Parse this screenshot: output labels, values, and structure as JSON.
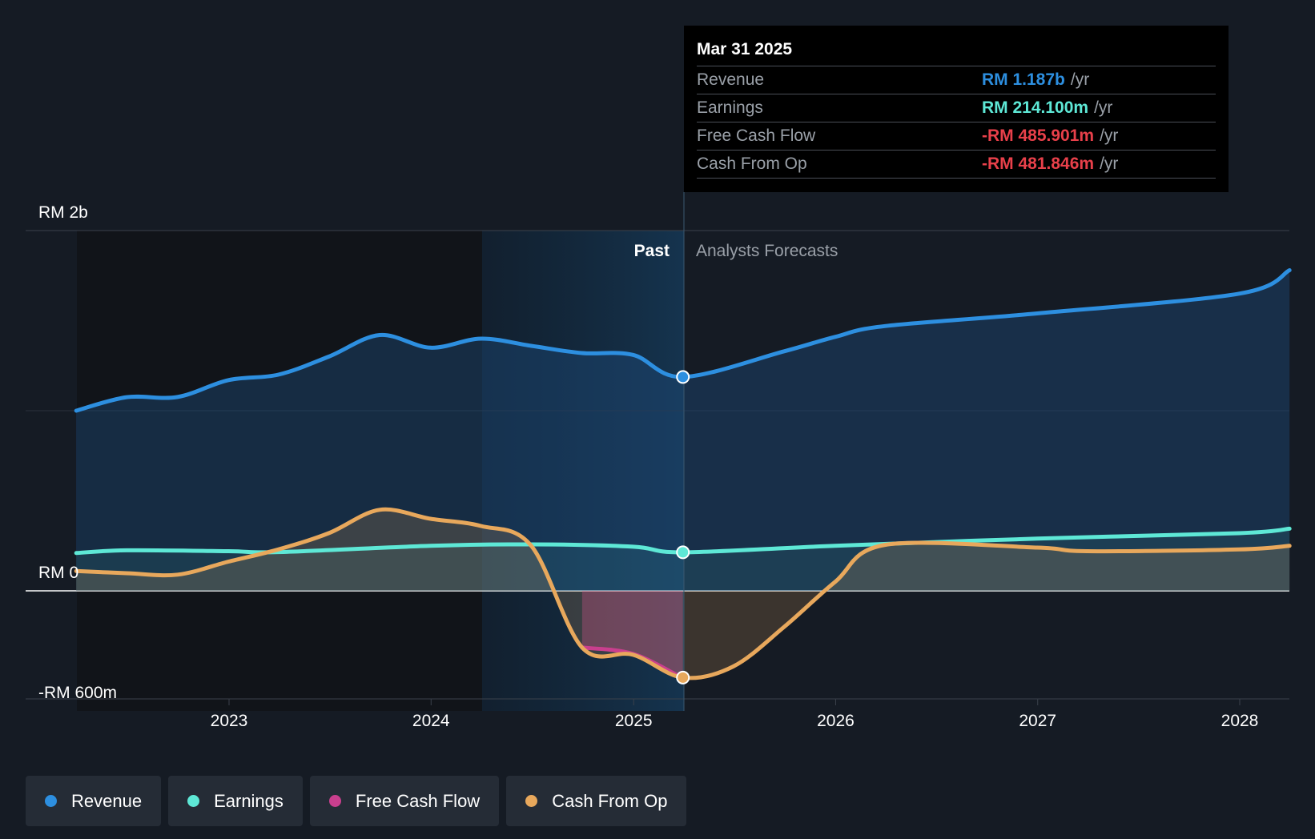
{
  "chart_data": {
    "type": "area",
    "currency": "RM",
    "y_axis": {
      "min": -600,
      "max": 2000,
      "unit": "RM m",
      "labels": [
        "RM 2b",
        "RM 0",
        "-RM 600m"
      ]
    },
    "x_axis": {
      "ticks": [
        "2023",
        "2024",
        "2025",
        "2026",
        "2027",
        "2028"
      ]
    },
    "sections": {
      "past_label": "Past",
      "forecast_label": "Analysts Forecasts",
      "divider_date": "2025-03-31"
    },
    "series": [
      {
        "name": "Revenue",
        "color": "#2d8fe0",
        "points": [
          [
            "2022-03-31",
            1000
          ],
          [
            "2022-06-30",
            1075
          ],
          [
            "2022-09-30",
            1076
          ],
          [
            "2022-12-31",
            1170
          ],
          [
            "2023-03-31",
            1200
          ],
          [
            "2023-06-30",
            1300
          ],
          [
            "2023-09-30",
            1420
          ],
          [
            "2023-12-31",
            1350
          ],
          [
            "2024-03-31",
            1400
          ],
          [
            "2024-06-30",
            1360
          ],
          [
            "2024-09-30",
            1320
          ],
          [
            "2024-12-31",
            1310
          ],
          [
            "2025-03-31",
            1187
          ],
          [
            "2025-09-30",
            1330
          ],
          [
            "2025-12-31",
            1410
          ],
          [
            "2026-03-31",
            1470
          ],
          [
            "2026-12-31",
            1540
          ],
          [
            "2027-12-31",
            1650
          ],
          [
            "2028-03-31",
            1780
          ]
        ]
      },
      {
        "name": "Earnings",
        "color": "#5ee8d6",
        "points": [
          [
            "2022-03-31",
            210
          ],
          [
            "2022-06-30",
            225
          ],
          [
            "2022-12-31",
            220
          ],
          [
            "2023-03-31",
            215
          ],
          [
            "2023-12-31",
            250
          ],
          [
            "2024-06-30",
            258
          ],
          [
            "2024-12-31",
            245
          ],
          [
            "2025-03-31",
            214
          ],
          [
            "2025-12-31",
            250
          ],
          [
            "2026-12-31",
            290
          ],
          [
            "2027-12-31",
            320
          ],
          [
            "2028-03-31",
            345
          ]
        ]
      },
      {
        "name": "Free Cash Flow",
        "color": "#c93f8e",
        "points": [
          [
            "2024-09-30",
            -315
          ],
          [
            "2024-12-31",
            -350
          ],
          [
            "2025-03-31",
            -485.9
          ]
        ]
      },
      {
        "name": "Cash From Op",
        "color": "#e8a85c",
        "points": [
          [
            "2022-03-31",
            110
          ],
          [
            "2022-06-30",
            98
          ],
          [
            "2022-09-30",
            90
          ],
          [
            "2022-12-31",
            162
          ],
          [
            "2023-03-31",
            230
          ],
          [
            "2023-06-30",
            320
          ],
          [
            "2023-09-30",
            450
          ],
          [
            "2023-12-31",
            400
          ],
          [
            "2024-03-31",
            360
          ],
          [
            "2024-06-30",
            250
          ],
          [
            "2024-09-30",
            -315
          ],
          [
            "2024-12-31",
            -355
          ],
          [
            "2025-03-31",
            -481.8
          ],
          [
            "2025-06-30",
            -420
          ],
          [
            "2025-09-30",
            -200
          ],
          [
            "2025-12-31",
            50
          ],
          [
            "2026-03-31",
            255
          ],
          [
            "2026-12-31",
            240
          ],
          [
            "2027-03-31",
            220
          ],
          [
            "2027-12-31",
            230
          ],
          [
            "2028-03-31",
            250
          ]
        ]
      }
    ]
  },
  "tooltip": {
    "date": "Mar 31 2025",
    "rows": [
      {
        "label": "Revenue",
        "value": "RM 1.187b",
        "unit": "/yr",
        "color": "#2d8fe0"
      },
      {
        "label": "Earnings",
        "value": "RM 214.100m",
        "unit": "/yr",
        "color": "#5ee8d6"
      },
      {
        "label": "Free Cash Flow",
        "value": "-RM 485.901m",
        "unit": "/yr",
        "color": "#e8404a"
      },
      {
        "label": "Cash From Op",
        "value": "-RM 481.846m",
        "unit": "/yr",
        "color": "#e8404a"
      }
    ]
  },
  "legend": [
    {
      "label": "Revenue",
      "color": "#2d8fe0"
    },
    {
      "label": "Earnings",
      "color": "#5ee8d6"
    },
    {
      "label": "Free Cash Flow",
      "color": "#c93f8e"
    },
    {
      "label": "Cash From Op",
      "color": "#e8a85c"
    }
  ]
}
